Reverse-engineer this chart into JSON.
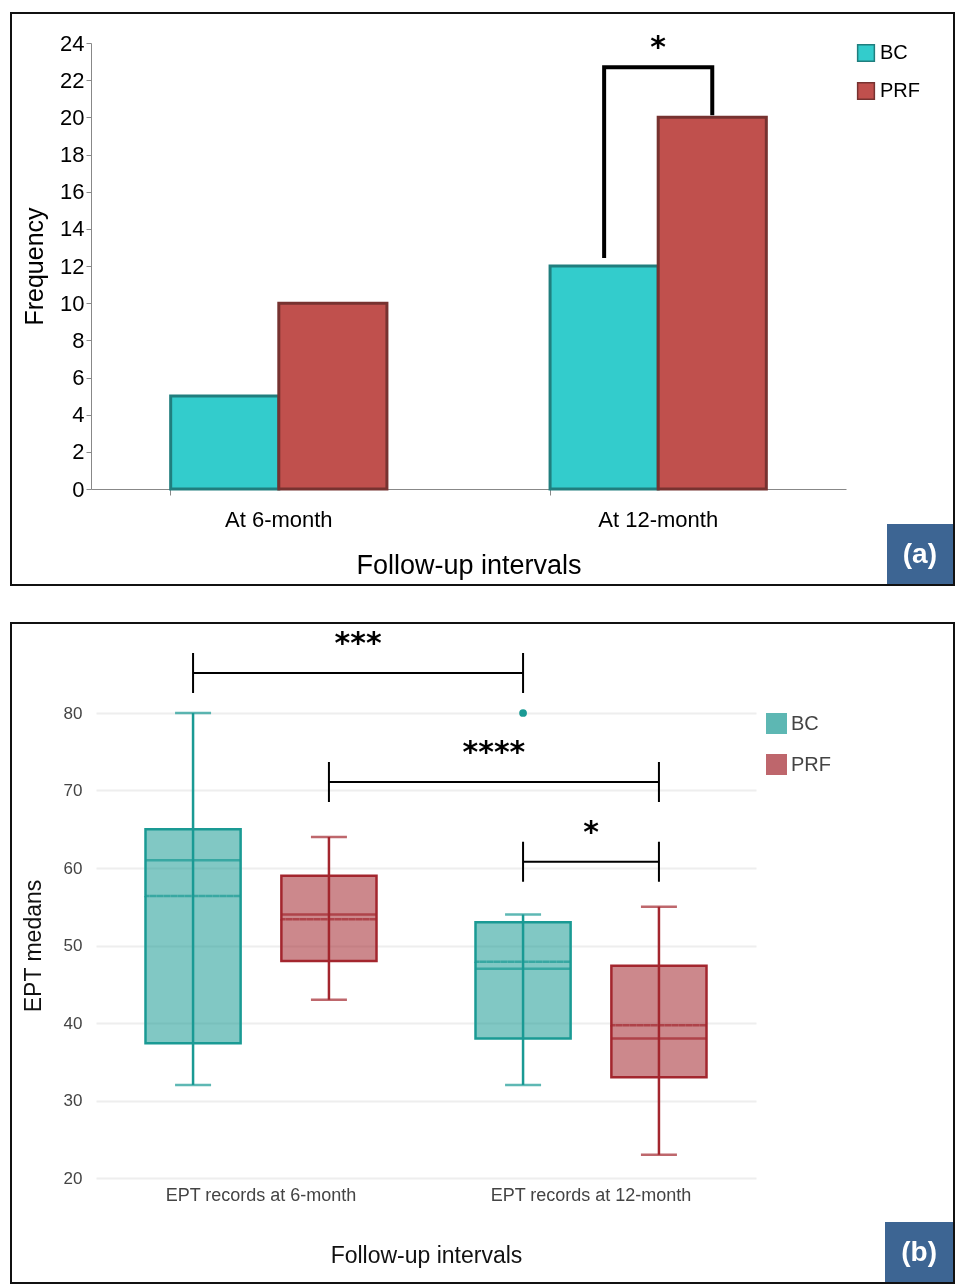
{
  "chart_data": [
    {
      "type": "bar",
      "xlabel": "Follow-up  intervals",
      "ylabel": "Frequency",
      "categories": [
        "At 6-month",
        "At 12-month"
      ],
      "series": [
        {
          "name": "BC",
          "color": "#33cccc",
          "values": [
            5,
            12
          ]
        },
        {
          "name": "PRF",
          "color": "#c0504d",
          "values": [
            10,
            20
          ]
        }
      ],
      "ylim": [
        0,
        24
      ],
      "yticks": [
        0,
        2,
        4,
        6,
        8,
        10,
        12,
        14,
        16,
        18,
        20,
        22,
        24
      ],
      "legend": "top right",
      "annotations": [
        "*",
        "(a)"
      ]
    },
    {
      "type": "box",
      "xlabel": "Follow-up intervals",
      "ylabel": "EPT medans",
      "categories": [
        "EPT records at 6-month",
        "EPT records at 12-month"
      ],
      "series": [
        {
          "name": "BC",
          "color": "#1a9a94",
          "boxes": [
            {
              "low": 32,
              "q1": 37.4,
              "median": 61,
              "q3": 65,
              "high": 80,
              "mean": 56.4
            },
            {
              "low": 32,
              "q1": 38,
              "median": 47,
              "q3": 53,
              "high": 54,
              "mean": 47.9,
              "outliers": [
                80
              ]
            }
          ]
        },
        {
          "name": "PRF",
          "color": "#a3262e",
          "boxes": [
            {
              "low": 43,
              "q1": 48,
              "median": 54,
              "q3": 59,
              "high": 64,
              "mean": 53.4
            },
            {
              "low": 23,
              "q1": 33,
              "median": 38,
              "q3": 47.4,
              "high": 55,
              "mean": 39.7
            }
          ]
        }
      ],
      "ylim": [
        20,
        80
      ],
      "yticks": [
        20,
        30,
        40,
        50,
        60,
        70,
        80
      ],
      "grid": "y",
      "legend": "top right",
      "annotations": [
        "***",
        "****",
        "*",
        "(b)"
      ]
    }
  ]
}
